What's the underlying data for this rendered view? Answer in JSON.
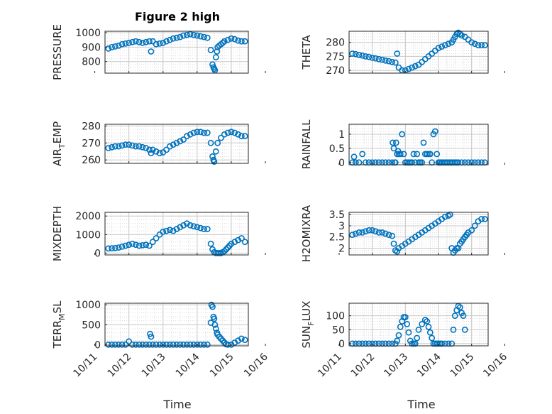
{
  "figure_title": "Figure 2 high",
  "xlabel": "Time",
  "x_tick_labels": [
    "10/11",
    "10/12",
    "10/13",
    "10/14",
    "10/15",
    "10/16"
  ],
  "colors": {
    "marker": "#0072BD",
    "axis": "#262626",
    "grid": "#dcdcdc"
  },
  "chart_data": [
    {
      "type": "scatter",
      "ylabel": "PRESSURE",
      "title": "Figure 2 high",
      "xlim": [
        11.3,
        15.5
      ],
      "ylim": [
        720,
        1010
      ],
      "yticks": [
        800,
        900,
        1000
      ],
      "ytick_labels": [
        "800",
        "900",
        "1000"
      ],
      "x": [
        11.4,
        11.5,
        11.6,
        11.7,
        11.8,
        11.9,
        12.0,
        12.1,
        12.2,
        12.3,
        12.4,
        12.5,
        12.6,
        12.65,
        12.7,
        12.8,
        12.9,
        13.0,
        13.1,
        13.2,
        13.3,
        13.4,
        13.5,
        13.6,
        13.7,
        13.8,
        13.9,
        14.0,
        14.1,
        14.2,
        14.3,
        14.4,
        14.45,
        14.48,
        14.5,
        14.52,
        14.55,
        14.58,
        14.6,
        14.65,
        14.7,
        14.75,
        14.8,
        14.9,
        15.0,
        15.1,
        15.2,
        15.3,
        15.4
      ],
      "y": [
        890,
        900,
        905,
        910,
        920,
        925,
        930,
        935,
        940,
        935,
        930,
        935,
        940,
        870,
        940,
        920,
        925,
        930,
        940,
        950,
        960,
        965,
        970,
        980,
        985,
        990,
        985,
        980,
        975,
        970,
        965,
        880,
        780,
        760,
        750,
        740,
        830,
        870,
        900,
        910,
        920,
        930,
        940,
        950,
        960,
        955,
        945,
        940,
        940
      ]
    },
    {
      "type": "scatter",
      "ylabel": "AIR_T EMP",
      "xlim": [
        11.3,
        15.5
      ],
      "ylim": [
        258,
        281
      ],
      "yticks": [
        260,
        270,
        280
      ],
      "ytick_labels": [
        "260",
        "270",
        "280"
      ],
      "x": [
        11.4,
        11.5,
        11.6,
        11.7,
        11.8,
        11.9,
        12.0,
        12.1,
        12.2,
        12.3,
        12.4,
        12.5,
        12.6,
        12.65,
        12.7,
        12.8,
        12.9,
        13.0,
        13.1,
        13.2,
        13.3,
        13.4,
        13.5,
        13.6,
        13.7,
        13.8,
        13.9,
        14.0,
        14.1,
        14.2,
        14.3,
        14.4,
        14.45,
        14.48,
        14.5,
        14.55,
        14.6,
        14.7,
        14.8,
        14.9,
        15.0,
        15.1,
        15.2,
        15.3,
        15.4
      ],
      "y": [
        267,
        267.5,
        268,
        268,
        268.5,
        269,
        269,
        268.5,
        268,
        268,
        267.5,
        267,
        266,
        264,
        266,
        265,
        264,
        264.5,
        266,
        268,
        269,
        270,
        271,
        272,
        274,
        275,
        276,
        276.5,
        276.5,
        276,
        276,
        270,
        262,
        260,
        259,
        265,
        270,
        273,
        275,
        276,
        276.5,
        276,
        275,
        274,
        274
      ]
    },
    {
      "type": "scatter",
      "ylabel": "MIXDEPTH",
      "xlim": [
        11.3,
        15.5
      ],
      "ylim": [
        -100,
        2200
      ],
      "yticks": [
        0,
        1000,
        2000
      ],
      "ytick_labels": [
        "0",
        "1000",
        "2000"
      ],
      "x": [
        11.4,
        11.5,
        11.6,
        11.7,
        11.8,
        11.9,
        12.0,
        12.1,
        12.2,
        12.3,
        12.4,
        12.5,
        12.6,
        12.7,
        12.8,
        12.9,
        13.0,
        13.1,
        13.2,
        13.3,
        13.4,
        13.5,
        13.6,
        13.7,
        13.8,
        13.9,
        14.0,
        14.1,
        14.2,
        14.3,
        14.4,
        14.45,
        14.5,
        14.55,
        14.6,
        14.65,
        14.7,
        14.75,
        14.8,
        14.85,
        14.9,
        14.95,
        15.0,
        15.1,
        15.2,
        15.3,
        15.4
      ],
      "y": [
        250,
        260,
        270,
        300,
        350,
        400,
        450,
        500,
        450,
        400,
        420,
        450,
        400,
        600,
        800,
        1000,
        1150,
        1200,
        1250,
        1200,
        1300,
        1400,
        1500,
        1600,
        1500,
        1450,
        1400,
        1350,
        1300,
        1300,
        500,
        200,
        50,
        0,
        0,
        0,
        0,
        50,
        100,
        200,
        300,
        400,
        500,
        600,
        700,
        800,
        600
      ]
    },
    {
      "type": "scatter",
      "ylabel": "TERR_M SL",
      "xlim": [
        11.3,
        15.5
      ],
      "ylim": [
        -30,
        1040
      ],
      "yticks": [
        0,
        500,
        1000
      ],
      "ytick_labels": [
        "0",
        "500",
        "1000"
      ],
      "x": [
        11.4,
        11.5,
        11.6,
        11.7,
        11.8,
        11.9,
        12.0,
        12.1,
        12.2,
        12.3,
        12.4,
        12.5,
        12.6,
        12.62,
        12.65,
        12.7,
        12.8,
        12.9,
        13.0,
        13.1,
        13.2,
        13.3,
        13.4,
        13.5,
        13.6,
        13.7,
        13.8,
        13.9,
        14.0,
        14.1,
        14.2,
        14.3,
        14.4,
        14.42,
        14.45,
        14.48,
        14.5,
        14.52,
        14.55,
        14.58,
        14.6,
        14.65,
        14.7,
        14.75,
        14.8,
        14.85,
        14.9,
        15.0,
        15.1,
        15.2,
        15.3,
        15.4
      ],
      "y": [
        0,
        0,
        0,
        0,
        0,
        0,
        80,
        0,
        0,
        0,
        0,
        0,
        0,
        270,
        200,
        0,
        0,
        0,
        0,
        0,
        0,
        0,
        0,
        0,
        0,
        0,
        0,
        0,
        0,
        0,
        0,
        0,
        550,
        1000,
        950,
        700,
        650,
        500,
        400,
        300,
        250,
        200,
        150,
        100,
        50,
        10,
        0,
        0,
        50,
        100,
        150,
        120
      ]
    },
    {
      "type": "scatter",
      "ylabel": "THETA",
      "xlim": [
        11.3,
        15.5
      ],
      "ylim": [
        269,
        284
      ],
      "yticks": [
        270,
        275,
        280
      ],
      "ytick_labels": [
        "270",
        "275",
        "280"
      ],
      "x": [
        11.4,
        11.5,
        11.6,
        11.7,
        11.8,
        11.9,
        12.0,
        12.1,
        12.2,
        12.3,
        12.4,
        12.5,
        12.6,
        12.7,
        12.75,
        12.8,
        12.9,
        13.0,
        13.1,
        13.2,
        13.3,
        13.4,
        13.5,
        13.6,
        13.7,
        13.8,
        13.9,
        14.0,
        14.1,
        14.2,
        14.3,
        14.4,
        14.45,
        14.5,
        14.55,
        14.6,
        14.65,
        14.7,
        14.8,
        14.9,
        15.0,
        15.1,
        15.2,
        15.3,
        15.4
      ],
      "y": [
        276,
        275.8,
        275.5,
        275.3,
        275,
        274.8,
        274.5,
        274.3,
        274,
        273.8,
        273.5,
        273.3,
        273,
        272.8,
        276,
        271,
        270,
        270,
        270.5,
        271,
        271.5,
        272,
        273,
        274,
        275,
        276,
        277,
        278,
        278.5,
        279,
        279.5,
        280,
        281,
        282,
        283,
        283.5,
        283,
        282.5,
        282,
        281,
        280,
        279.5,
        279,
        279,
        279
      ]
    },
    {
      "type": "scatter",
      "ylabel": "RAINFALL",
      "xlim": [
        11.3,
        15.5
      ],
      "ylim": [
        -0.08,
        1.35
      ],
      "yticks": [
        0,
        0.5,
        1
      ],
      "ytick_labels": [
        "0",
        "0.5",
        "1"
      ],
      "x": [
        11.4,
        11.45,
        11.5,
        11.6,
        11.7,
        11.8,
        11.9,
        12.0,
        12.1,
        12.2,
        12.3,
        12.4,
        12.5,
        12.6,
        12.62,
        12.65,
        12.68,
        12.7,
        12.72,
        12.75,
        12.78,
        12.8,
        12.85,
        12.9,
        12.95,
        13.0,
        13.05,
        13.1,
        13.15,
        13.2,
        13.25,
        13.3,
        13.35,
        13.4,
        13.45,
        13.5,
        13.55,
        13.6,
        13.65,
        13.7,
        13.75,
        13.8,
        13.85,
        13.9,
        13.95,
        14.0,
        14.02,
        14.05,
        14.1,
        14.15,
        14.2,
        14.25,
        14.3,
        14.35,
        14.4,
        14.45,
        14.5,
        14.55,
        14.6,
        14.7,
        14.8,
        14.9,
        15.0,
        15.1,
        15.2,
        15.3,
        15.4
      ],
      "y": [
        0,
        0.2,
        0,
        0,
        0.3,
        0,
        0,
        0,
        0,
        0,
        0,
        0,
        0,
        0,
        0.7,
        0.5,
        0,
        0,
        0.7,
        0.3,
        0.4,
        0.3,
        0.3,
        1.0,
        0.3,
        0,
        0,
        0,
        0,
        0,
        0.3,
        0,
        0.3,
        0,
        0,
        0,
        0.7,
        0.3,
        0.3,
        0.3,
        0.3,
        0,
        1.0,
        1.1,
        0.3,
        0,
        0,
        0,
        0,
        0,
        0,
        0,
        0,
        0,
        0,
        0,
        0,
        0,
        0,
        0,
        0,
        0,
        0,
        0,
        0,
        0,
        0
      ]
    },
    {
      "type": "scatter",
      "ylabel": "H2OMIXRA",
      "xlim": [
        11.3,
        15.5
      ],
      "ylim": [
        1.7,
        3.6
      ],
      "yticks": [
        2,
        2.5,
        3,
        3.5
      ],
      "ytick_labels": [
        "2",
        "2.5",
        "3",
        "3.5"
      ],
      "x": [
        11.4,
        11.5,
        11.6,
        11.7,
        11.8,
        11.9,
        12.0,
        12.1,
        12.2,
        12.3,
        12.4,
        12.5,
        12.6,
        12.65,
        12.7,
        12.75,
        12.8,
        12.9,
        13.0,
        13.1,
        13.2,
        13.3,
        13.4,
        13.5,
        13.6,
        13.7,
        13.8,
        13.9,
        14.0,
        14.1,
        14.2,
        14.3,
        14.35,
        14.4,
        14.45,
        14.5,
        14.55,
        14.6,
        14.65,
        14.7,
        14.75,
        14.8,
        14.85,
        14.9,
        15.0,
        15.1,
        15.2,
        15.3,
        15.4
      ],
      "y": [
        2.6,
        2.65,
        2.7,
        2.7,
        2.75,
        2.8,
        2.8,
        2.75,
        2.7,
        2.7,
        2.65,
        2.6,
        2.55,
        2.2,
        1.9,
        1.85,
        2.0,
        2.1,
        2.2,
        2.3,
        2.4,
        2.5,
        2.6,
        2.7,
        2.8,
        2.9,
        3.0,
        3.1,
        3.2,
        3.3,
        3.4,
        3.45,
        3.5,
        2.0,
        1.8,
        1.9,
        2.0,
        2.0,
        2.2,
        2.3,
        2.4,
        2.5,
        2.6,
        2.7,
        2.8,
        3.0,
        3.2,
        3.3,
        3.3
      ]
    },
    {
      "type": "scatter",
      "ylabel": "SUN_F LUX",
      "xlim": [
        11.3,
        15.5
      ],
      "ylim": [
        -8,
        145
      ],
      "yticks": [
        0,
        50,
        100
      ],
      "ytick_labels": [
        "0",
        "50",
        "100"
      ],
      "x": [
        11.4,
        11.5,
        11.6,
        11.7,
        11.8,
        11.9,
        12.0,
        12.1,
        12.2,
        12.3,
        12.4,
        12.5,
        12.6,
        12.7,
        12.75,
        12.8,
        12.85,
        12.9,
        12.95,
        13.0,
        13.05,
        13.1,
        13.15,
        13.2,
        13.25,
        13.3,
        13.35,
        13.4,
        13.5,
        13.6,
        13.65,
        13.7,
        13.75,
        13.8,
        13.85,
        13.9,
        13.95,
        14.0,
        14.05,
        14.1,
        14.2,
        14.3,
        14.4,
        14.45,
        14.5,
        14.55,
        14.6,
        14.65,
        14.7,
        14.75,
        14.8
      ],
      "y": [
        0,
        0,
        0,
        0,
        0,
        0,
        0,
        0,
        0,
        0,
        0,
        0,
        0,
        0,
        10,
        30,
        60,
        80,
        95,
        95,
        70,
        40,
        10,
        0,
        0,
        0,
        20,
        50,
        70,
        85,
        80,
        60,
        40,
        20,
        0,
        0,
        0,
        0,
        0,
        0,
        0,
        0,
        0,
        50,
        100,
        120,
        135,
        130,
        110,
        100,
        50
      ]
    }
  ]
}
